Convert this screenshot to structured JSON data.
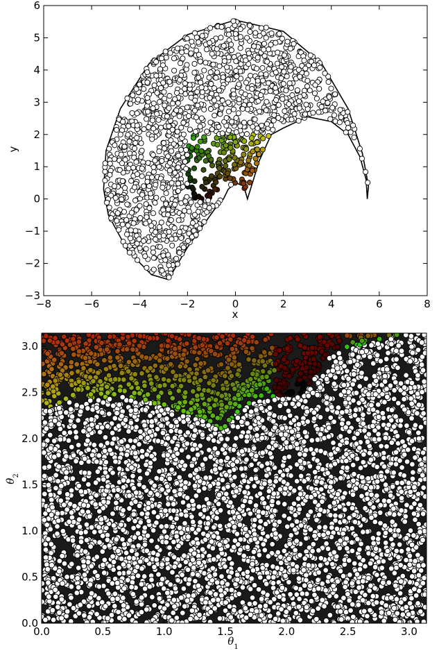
{
  "chart_data": [
    {
      "type": "scatter",
      "title": "",
      "xlabel": "x",
      "ylabel": "y",
      "xlim": [
        -8,
        8
      ],
      "ylim": [
        -3,
        6
      ],
      "xticks": [
        "−8",
        "−6",
        "−4",
        "−2",
        "0",
        "2",
        "4",
        "6",
        "8"
      ],
      "yticks": [
        "−3",
        "−2",
        "−1",
        "0",
        "1",
        "2",
        "3",
        "4",
        "5",
        "6"
      ],
      "grid": false,
      "legend": "none",
      "description_of_regions": {
        "white_region_outline_xy": [
          [
            5.5,
            0.0
          ],
          [
            5.45,
            0.6
          ],
          [
            5.2,
            1.3
          ],
          [
            4.7,
            2.0
          ],
          [
            4.0,
            2.4
          ],
          [
            3.0,
            2.55
          ],
          [
            2.0,
            2.2
          ],
          [
            1.5,
            2.0
          ],
          [
            1.0,
            1.2
          ],
          [
            0.5,
            0.0
          ],
          [
            0.35,
            0.4
          ],
          [
            0.0,
            0.5
          ],
          [
            -0.3,
            0.3
          ],
          [
            -0.5,
            0.0
          ],
          [
            -0.9,
            -0.35
          ],
          [
            -2.0,
            -1.5
          ],
          [
            -2.8,
            -2.5
          ],
          [
            -3.5,
            -2.35
          ],
          [
            -4.5,
            -1.6
          ],
          [
            -5.3,
            -0.5
          ],
          [
            -5.5,
            0.3
          ],
          [
            -5.4,
            1.5
          ],
          [
            -4.8,
            2.8
          ],
          [
            -3.6,
            4.2
          ],
          [
            -2.0,
            5.1
          ],
          [
            0.0,
            5.55
          ],
          [
            2.0,
            5.2
          ],
          [
            3.6,
            4.2
          ],
          [
            4.7,
            2.8
          ],
          [
            5.3,
            1.4
          ],
          [
            5.55,
            0.4
          ]
        ],
        "colored_region_xy_bounds": {
          "x": [
            -2.0,
            1.5
          ],
          "y": [
            0.0,
            2.0
          ]
        },
        "colored_region_gradient": "green at top-left, yellow at top-right, red near bottom, black at bottom-left"
      }
    },
    {
      "type": "scatter",
      "title": "",
      "xlabel": "θ1",
      "ylabel": "θ2",
      "xlim": [
        0.0,
        3.14159
      ],
      "ylim": [
        0.0,
        3.14159
      ],
      "xticks": [
        "0.0",
        "0.5",
        "1.0",
        "1.5",
        "2.0",
        "2.5",
        "3.0"
      ],
      "yticks": [
        "0.0",
        "0.5",
        "1.0",
        "1.5",
        "2.0",
        "2.5",
        "3.0"
      ],
      "grid": false,
      "legend": "none",
      "description_of_regions": {
        "colored_region_lower_boundary_theta": [
          [
            0.0,
            2.3
          ],
          [
            0.2,
            2.4
          ],
          [
            0.45,
            2.45
          ],
          [
            0.7,
            2.45
          ],
          [
            1.0,
            2.35
          ],
          [
            1.3,
            2.22
          ],
          [
            1.48,
            2.07
          ],
          [
            1.62,
            2.32
          ],
          [
            1.8,
            2.42
          ],
          [
            2.0,
            2.45
          ],
          [
            2.15,
            2.5
          ],
          [
            2.25,
            2.72
          ],
          [
            2.4,
            2.95
          ],
          [
            2.7,
            3.05
          ],
          [
            3.0,
            3.14
          ]
        ],
        "colored_region_gradient": "red at top, yellow to green in middle-left, black near (2.1, 2.5)",
        "rest_of_area": "white circles with black outlines"
      }
    }
  ]
}
